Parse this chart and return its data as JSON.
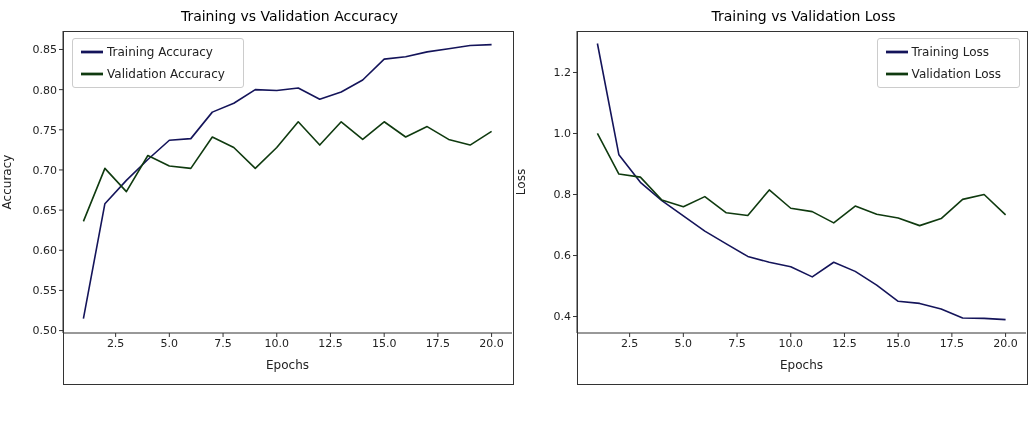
{
  "chart_data": [
    {
      "type": "line",
      "title": "Training vs Validation Accuracy",
      "xlabel": "Epochs",
      "ylabel": "Accuracy",
      "x": [
        1,
        2,
        3,
        4,
        5,
        6,
        7,
        8,
        9,
        10,
        11,
        12,
        13,
        14,
        15,
        16,
        17,
        18,
        19,
        20
      ],
      "series": [
        {
          "name": "Training Accuracy",
          "color": "#14145a",
          "values": [
            0.515,
            0.658,
            0.687,
            0.713,
            0.737,
            0.739,
            0.772,
            0.783,
            0.8,
            0.799,
            0.802,
            0.788,
            0.797,
            0.812,
            0.838,
            0.841,
            0.847,
            0.851,
            0.855,
            0.856
          ]
        },
        {
          "name": "Validation Accuracy",
          "color": "#0f3a0f",
          "values": [
            0.636,
            0.702,
            0.673,
            0.718,
            0.705,
            0.702,
            0.741,
            0.728,
            0.702,
            0.728,
            0.76,
            0.731,
            0.76,
            0.738,
            0.76,
            0.741,
            0.754,
            0.738,
            0.731,
            0.748
          ]
        }
      ],
      "xlim": [
        0.05,
        20.95
      ],
      "xticks": [
        2.5,
        {
          "value": 5,
          "label": "5.0"
        },
        7.5,
        {
          "value": 10,
          "label": "10.0"
        },
        12.5,
        {
          "value": 15,
          "label": "15.0"
        },
        17.5,
        {
          "value": 20,
          "label": "20.0"
        }
      ],
      "ylim": [
        0.497,
        0.873
      ],
      "yticks": [
        {
          "value": 0.5,
          "label": "0.50"
        },
        0.55,
        {
          "value": 0.6,
          "label": "0.60"
        },
        0.65,
        {
          "value": 0.7,
          "label": "0.70"
        },
        0.75,
        {
          "value": 0.8,
          "label": "0.80"
        },
        0.85
      ],
      "grid": false,
      "legend": "top left",
      "marker": "none",
      "line_style": "solid"
    },
    {
      "type": "line",
      "title": "Training vs Validation Loss",
      "xlabel": "Epochs",
      "ylabel": "Loss",
      "x": [
        1,
        2,
        3,
        4,
        5,
        6,
        7,
        8,
        9,
        10,
        11,
        12,
        13,
        14,
        15,
        16,
        17,
        18,
        19,
        20
      ],
      "series": [
        {
          "name": "Training Loss",
          "color": "#14145a",
          "values": [
            1.295,
            0.93,
            0.84,
            0.78,
            0.73,
            0.68,
            0.638,
            0.597,
            0.578,
            0.563,
            0.53,
            0.578,
            0.548,
            0.503,
            0.45,
            0.443,
            0.425,
            0.395,
            0.394,
            0.39
          ]
        },
        {
          "name": "Validation Loss",
          "color": "#0f3a0f",
          "values": [
            1.0,
            0.867,
            0.857,
            0.782,
            0.76,
            0.793,
            0.74,
            0.731,
            0.815,
            0.755,
            0.744,
            0.707,
            0.762,
            0.735,
            0.723,
            0.698,
            0.721,
            0.784,
            0.8,
            0.733
          ]
        }
      ],
      "xlim": [
        0.05,
        20.95
      ],
      "xticks": [
        2.5,
        {
          "value": 5,
          "label": "5.0"
        },
        7.5,
        {
          "value": 10,
          "label": "10.0"
        },
        12.5,
        {
          "value": 15,
          "label": "15.0"
        },
        17.5,
        {
          "value": 20,
          "label": "20.0"
        }
      ],
      "ylim": [
        0.346,
        1.336
      ],
      "yticks": [
        0.4,
        0.6,
        0.8,
        {
          "value": 1,
          "label": "1.0"
        },
        1.2
      ],
      "grid": false,
      "legend": "top right",
      "marker": "none",
      "line_style": "solid"
    }
  ]
}
